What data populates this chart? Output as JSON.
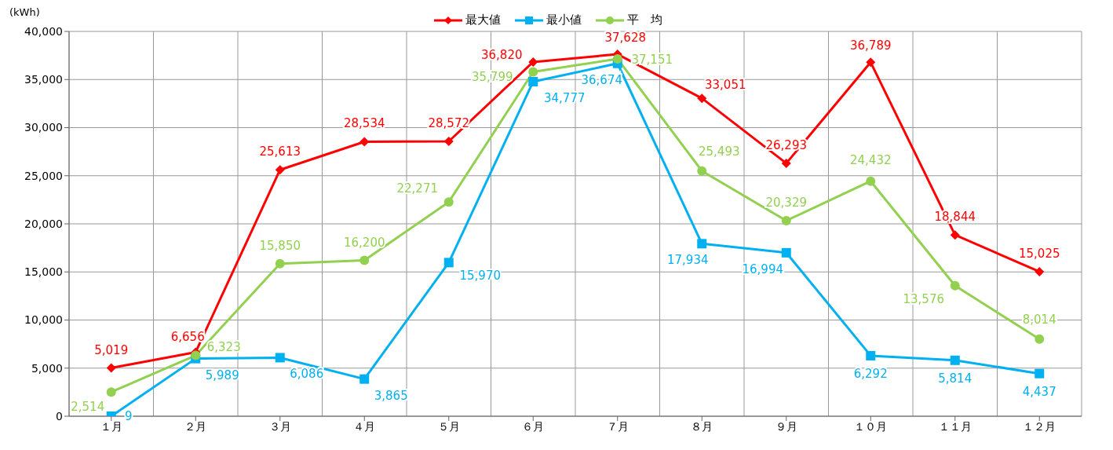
{
  "chart_data": {
    "type": "line",
    "ylabel": "(kWh)",
    "categories": [
      "１月",
      "２月",
      "３月",
      "４月",
      "５月",
      "６月",
      "７月",
      "８月",
      "９月",
      "１０月",
      "１１月",
      "１２月"
    ],
    "series": [
      {
        "name": "最大値",
        "color": "#ff0000",
        "marker": "diamond",
        "values": [
          5019,
          6656,
          25613,
          28534,
          28572,
          36820,
          37628,
          33051,
          26293,
          36789,
          18844,
          15025
        ],
        "value_labels": [
          "5,019",
          "6,656",
          "25,613",
          "28,534",
          "28,572",
          "36,820",
          "37,628",
          "33,051",
          "26,293",
          "36,789",
          "18,844",
          "15,025"
        ]
      },
      {
        "name": "最小値",
        "color": "#00b0f0",
        "marker": "square",
        "values": [
          9,
          5989,
          6086,
          3865,
          15970,
          34777,
          36674,
          17934,
          16994,
          6292,
          5814,
          4437
        ],
        "value_labels": [
          "9",
          "5,989",
          "6,086",
          "3,865",
          "15,970",
          "34,777",
          "36,674",
          "17,934",
          "16,994",
          "6,292",
          "5,814",
          "4,437"
        ]
      },
      {
        "name": "平　均",
        "color": "#92d050",
        "marker": "circle",
        "values": [
          2514,
          6323,
          15850,
          16200,
          22271,
          35799,
          37151,
          25493,
          20329,
          24432,
          13576,
          8014
        ],
        "value_labels": [
          "2,514",
          "6,323",
          "15,850",
          "16,200",
          "22,271",
          "35,799",
          "37,151",
          "25,493",
          "20,329",
          "24,432",
          "13,576",
          "8,014"
        ]
      }
    ],
    "ylim": [
      0,
      40000
    ],
    "yticks": [
      0,
      {
        "value": 5000,
        "label": "5,000"
      },
      {
        "value": 10000,
        "label": "10,000"
      },
      {
        "value": 15000,
        "label": "15,000"
      },
      {
        "value": 20000,
        "label": "20,000"
      },
      {
        "value": 25000,
        "label": "25,000"
      },
      {
        "value": 30000,
        "label": "30,000"
      },
      {
        "value": 35000,
        "label": "35,000"
      },
      {
        "value": 40000,
        "label": "40,000"
      }
    ],
    "grid": true,
    "legend": "top"
  }
}
